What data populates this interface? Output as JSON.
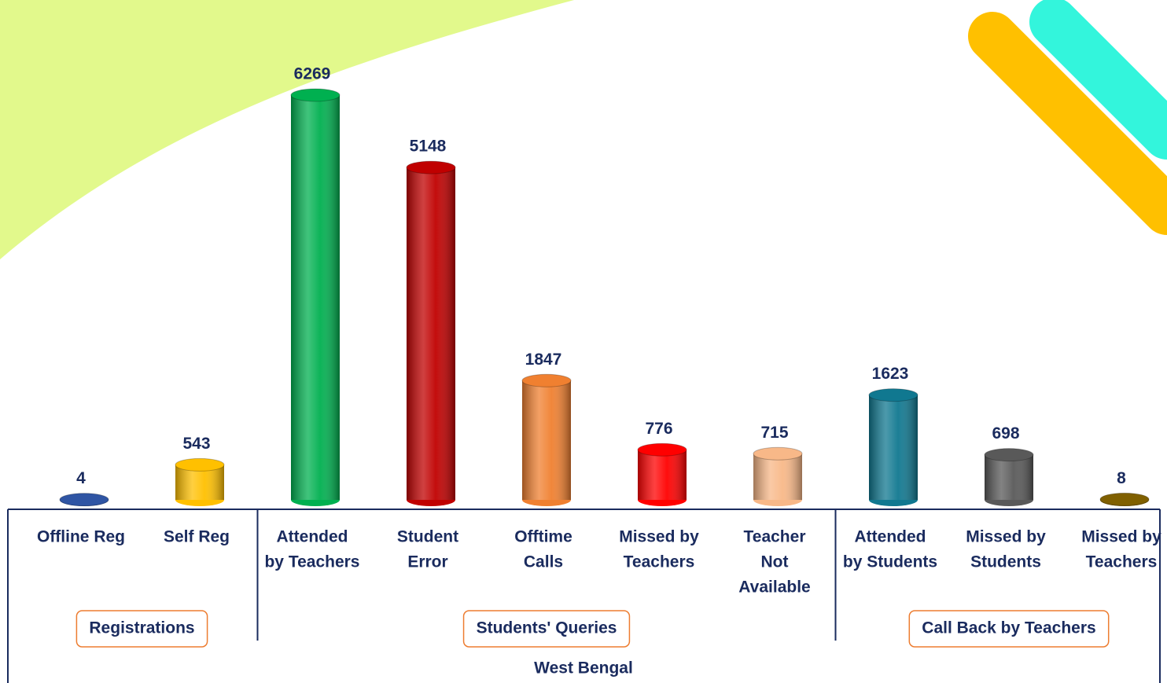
{
  "chart_data": {
    "type": "bar",
    "x_label": "West Bengal",
    "groups": [
      {
        "label": "Registrations",
        "categories": [
          [
            "Offline Reg"
          ],
          [
            "Self Reg"
          ]
        ],
        "values": [
          4,
          543
        ],
        "colors": [
          "#2f55a4",
          "#ffc000"
        ]
      },
      {
        "label": "Students' Queries",
        "categories": [
          [
            "Attended",
            "by Teachers"
          ],
          [
            "Student",
            "Error"
          ],
          [
            "Offtime",
            "Calls"
          ],
          [
            "Missed by",
            "Teachers"
          ],
          [
            "Teacher",
            "Not",
            "Available"
          ]
        ],
        "values": [
          6269,
          5148,
          1847,
          776,
          715
        ],
        "colors": [
          "#00b050",
          "#c00000",
          "#f08030",
          "#ff0000",
          "#f8b888"
        ]
      },
      {
        "label": "Call Back by Teachers",
        "categories": [
          [
            "Attended",
            "by Students"
          ],
          [
            "Missed by",
            "Students"
          ],
          [
            "Missed by",
            "Teachers"
          ]
        ],
        "values": [
          1623,
          698,
          8
        ],
        "colors": [
          "#107890",
          "#595959",
          "#806000"
        ]
      }
    ]
  }
}
